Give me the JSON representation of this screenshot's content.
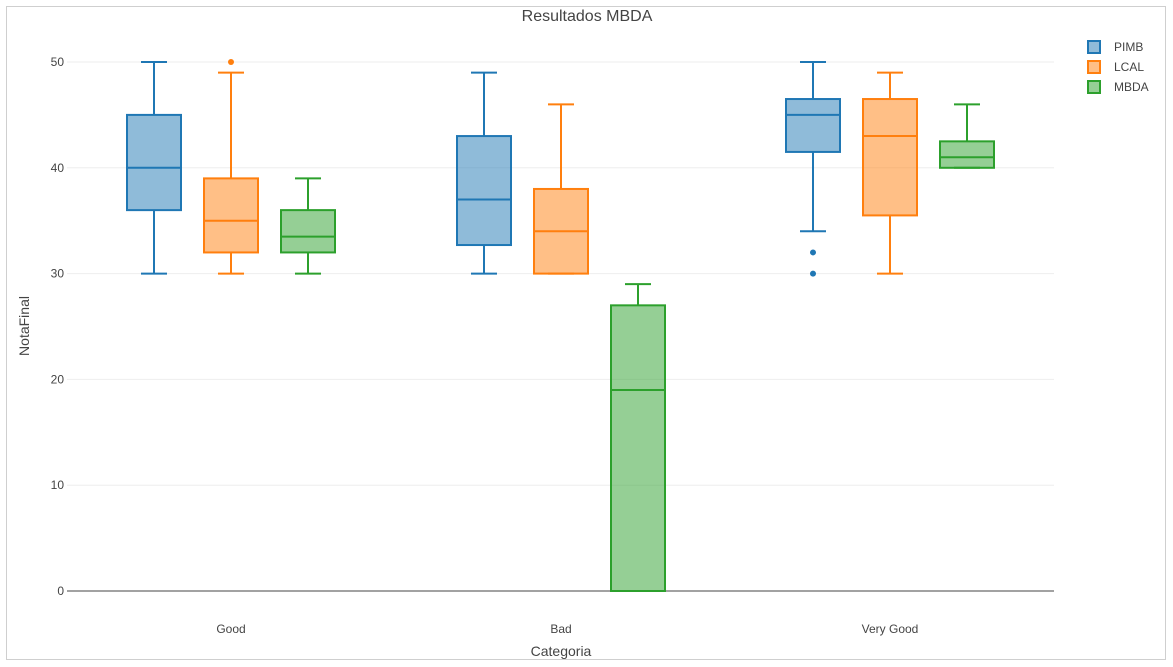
{
  "chart_data": {
    "type": "box",
    "title": "Resultados MBDA",
    "xlabel": "Categoria",
    "ylabel": "NotaFinal",
    "categories": [
      "Good",
      "Bad",
      "Very Good"
    ],
    "ylim": [
      0,
      52
    ],
    "yticks": [
      0,
      10,
      20,
      30,
      40,
      50
    ],
    "grid": true,
    "legend_position": "top-right",
    "series": [
      {
        "name": "PIMB",
        "color": "#1f77b4",
        "boxes": [
          {
            "category": "Good",
            "min": 30,
            "q1": 36,
            "median": 40,
            "q3": 45,
            "max": 50,
            "outliers": []
          },
          {
            "category": "Bad",
            "min": 30,
            "q1": 32.7,
            "median": 37,
            "q3": 43,
            "max": 49,
            "outliers": []
          },
          {
            "category": "Very Good",
            "min": 34,
            "q1": 41.5,
            "median": 45,
            "q3": 46.5,
            "max": 50,
            "outliers": [
              32,
              30
            ]
          }
        ]
      },
      {
        "name": "LCAL",
        "color": "#ff7f0e",
        "boxes": [
          {
            "category": "Good",
            "min": 30,
            "q1": 32,
            "median": 35,
            "q3": 39,
            "max": 49,
            "outliers": [
              50
            ]
          },
          {
            "category": "Bad",
            "min": 30,
            "q1": 30,
            "median": 34,
            "q3": 38,
            "max": 46,
            "outliers": []
          },
          {
            "category": "Very Good",
            "min": 30,
            "q1": 35.5,
            "median": 43,
            "q3": 46.5,
            "max": 49,
            "outliers": []
          }
        ]
      },
      {
        "name": "MBDA",
        "color": "#2ca02c",
        "boxes": [
          {
            "category": "Good",
            "min": 30,
            "q1": 32,
            "median": 33.5,
            "q3": 36,
            "max": 39,
            "outliers": []
          },
          {
            "category": "Bad",
            "min": 0,
            "q1": 0,
            "median": 19,
            "q3": 27,
            "max": 29,
            "outliers": []
          },
          {
            "category": "Very Good",
            "min": 40,
            "q1": 40,
            "median": 41,
            "q3": 42.5,
            "max": 46,
            "outliers": []
          }
        ]
      }
    ]
  }
}
